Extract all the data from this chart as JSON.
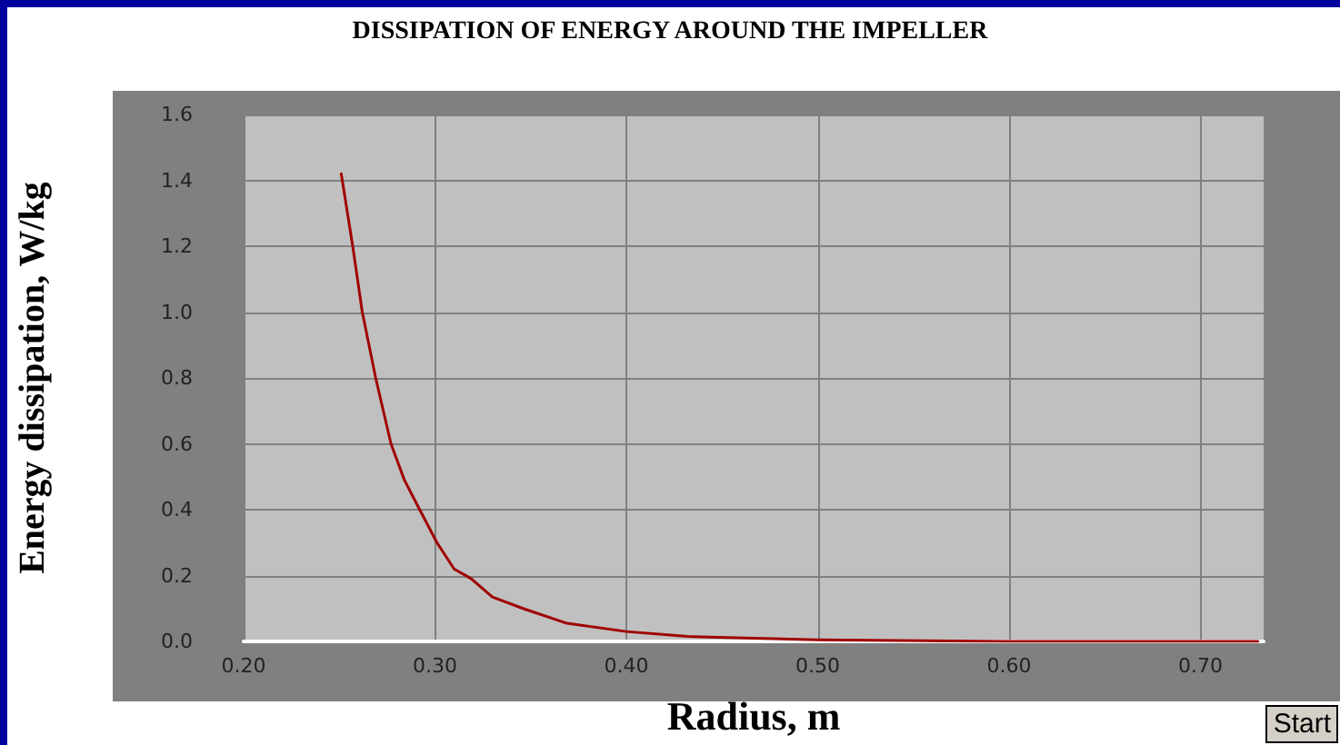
{
  "chart_data": {
    "type": "line",
    "title": "DISSIPATION OF ENERGY AROUND THE IMPELLER",
    "xlabel": "Radius, m",
    "ylabel": "Energy dissipation, W/kg",
    "annotations": [
      "Start"
    ],
    "x": [
      0.251,
      0.257,
      0.262,
      0.269,
      0.277,
      0.284,
      0.292,
      0.301,
      0.31,
      0.319,
      0.33,
      0.346,
      0.369,
      0.4,
      0.432,
      0.5,
      0.6,
      0.73
    ],
    "series": [
      {
        "color": "#a00000",
        "values": [
          1.42,
          1.2,
          1.0,
          0.8,
          0.6,
          0.49,
          0.4,
          0.3,
          0.22,
          0.19,
          0.135,
          0.1,
          0.055,
          0.03,
          0.015,
          0.005,
          0.0,
          0.0
        ]
      }
    ],
    "xlim": [
      0.2,
      0.733
    ],
    "xticks": [
      {
        "value": 0.2,
        "label": "0.20"
      },
      {
        "value": 0.3,
        "label": "0.30"
      },
      {
        "value": 0.4,
        "label": "0.40"
      },
      {
        "value": 0.5,
        "label": "0.50"
      },
      {
        "value": 0.6,
        "label": "0.60"
      },
      {
        "value": 0.7,
        "label": "0.70"
      }
    ],
    "ylim": [
      0,
      1.6
    ],
    "yticks": [
      {
        "value": 0,
        "label": "0.0"
      },
      {
        "value": 0.2,
        "label": "0.2"
      },
      {
        "value": 0.4,
        "label": "0.4"
      },
      {
        "value": 0.6,
        "label": "0.6"
      },
      {
        "value": 0.8,
        "label": "0.8"
      },
      {
        "value": 1.0,
        "label": "1.0"
      },
      {
        "value": 1.2,
        "label": "1.2"
      },
      {
        "value": 1.4,
        "label": "1.4"
      },
      {
        "value": 1.6,
        "label": "1.6"
      }
    ],
    "grid": true,
    "marker": "none",
    "line_style": "solid"
  }
}
